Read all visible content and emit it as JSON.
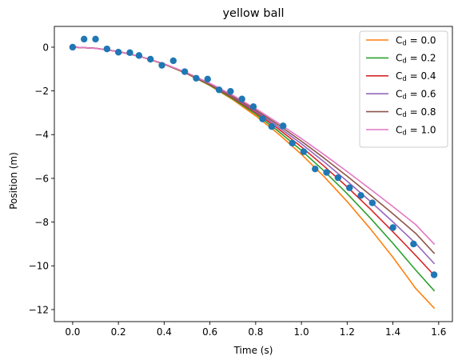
{
  "chart_data": {
    "type": "line",
    "title": "yellow ball",
    "xlabel": "Time (s)",
    "ylabel": "Position (m)",
    "xlim": [
      -0.08,
      1.66
    ],
    "ylim": [
      -12.55,
      0.95
    ],
    "xticks": [
      0.0,
      0.2,
      0.4,
      0.6,
      0.8,
      1.0,
      1.2,
      1.4,
      1.6
    ],
    "xtick_labels": [
      "0.0",
      "0.2",
      "0.4",
      "0.6",
      "0.8",
      "1.0",
      "1.2",
      "1.4",
      "1.6"
    ],
    "yticks": [
      0,
      -2,
      -4,
      -6,
      -8,
      -10,
      -12
    ],
    "ytick_labels": [
      "0",
      "−2",
      "−4",
      "−6",
      "−8",
      "−10",
      "−12"
    ],
    "grid": false,
    "legend_position": "top-right",
    "scatter": {
      "color": "#1f77b4",
      "x": [
        0.0,
        0.05,
        0.1,
        0.15,
        0.2,
        0.25,
        0.29,
        0.34,
        0.39,
        0.44,
        0.49,
        0.54,
        0.59,
        0.64,
        0.69,
        0.74,
        0.79,
        0.83,
        0.87,
        0.92,
        0.96,
        1.01,
        1.06,
        1.11,
        1.16,
        1.21,
        1.26,
        1.31,
        1.4,
        1.49,
        1.58
      ],
      "y": [
        0.0,
        0.37,
        0.37,
        -0.08,
        -0.23,
        -0.25,
        -0.38,
        -0.55,
        -0.83,
        -0.62,
        -1.12,
        -1.42,
        -1.46,
        -1.95,
        -2.02,
        -2.37,
        -2.72,
        -3.28,
        -3.63,
        -3.6,
        -4.39,
        -4.78,
        -5.57,
        -5.73,
        -5.97,
        -6.43,
        -6.78,
        -7.12,
        -8.25,
        -9.0,
        -10.41
      ]
    },
    "series": [
      {
        "name_base": "C",
        "name_sub": "d",
        "name_rest": " = 0.0",
        "color": "#ff7f0e",
        "x": [
          0.0,
          0.1,
          0.2,
          0.3,
          0.4,
          0.5,
          0.6,
          0.7,
          0.8,
          0.9,
          1.0,
          1.1,
          1.2,
          1.3,
          1.4,
          1.5,
          1.58
        ],
        "y": [
          0.0,
          -0.05,
          -0.2,
          -0.44,
          -0.78,
          -1.22,
          -1.76,
          -2.4,
          -3.14,
          -3.97,
          -4.9,
          -5.93,
          -7.06,
          -8.29,
          -9.61,
          -11.04,
          -11.93
        ]
      },
      {
        "name_base": "C",
        "name_sub": "d",
        "name_rest": " = 0.2",
        "color": "#2ca02c",
        "x": [
          0.0,
          0.1,
          0.2,
          0.3,
          0.4,
          0.5,
          0.6,
          0.7,
          0.8,
          0.9,
          1.0,
          1.1,
          1.2,
          1.3,
          1.4,
          1.5,
          1.58
        ],
        "y": [
          0.0,
          -0.05,
          -0.2,
          -0.44,
          -0.78,
          -1.21,
          -1.74,
          -2.36,
          -3.06,
          -3.85,
          -4.72,
          -5.67,
          -6.7,
          -7.8,
          -8.97,
          -10.2,
          -11.13
        ]
      },
      {
        "name_base": "C",
        "name_sub": "d",
        "name_rest": " = 0.4",
        "color": "#d62728",
        "x": [
          0.0,
          0.1,
          0.2,
          0.3,
          0.4,
          0.5,
          0.6,
          0.7,
          0.8,
          0.9,
          1.0,
          1.1,
          1.2,
          1.3,
          1.4,
          1.5,
          1.58
        ],
        "y": [
          0.0,
          -0.05,
          -0.2,
          -0.44,
          -0.77,
          -1.2,
          -1.71,
          -2.31,
          -2.99,
          -3.74,
          -4.56,
          -5.45,
          -6.39,
          -7.39,
          -8.44,
          -9.53,
          -10.43
        ]
      },
      {
        "name_base": "C",
        "name_sub": "d",
        "name_rest": " = 0.6",
        "color": "#9467bd",
        "x": [
          0.0,
          0.1,
          0.2,
          0.3,
          0.4,
          0.5,
          0.6,
          0.7,
          0.8,
          0.9,
          1.0,
          1.1,
          1.2,
          1.3,
          1.4,
          1.5,
          1.58
        ],
        "y": [
          0.0,
          -0.05,
          -0.2,
          -0.44,
          -0.77,
          -1.19,
          -1.69,
          -2.27,
          -2.93,
          -3.65,
          -4.42,
          -5.25,
          -6.13,
          -7.04,
          -7.99,
          -8.98,
          -9.89
        ]
      },
      {
        "name_base": "C",
        "name_sub": "d",
        "name_rest": " = 0.8",
        "color": "#8c564b",
        "x": [
          0.0,
          0.1,
          0.2,
          0.3,
          0.4,
          0.5,
          0.6,
          0.7,
          0.8,
          0.9,
          1.0,
          1.1,
          1.2,
          1.3,
          1.4,
          1.5,
          1.58
        ],
        "y": [
          0.0,
          -0.05,
          -0.2,
          -0.44,
          -0.77,
          -1.18,
          -1.67,
          -2.24,
          -2.87,
          -3.56,
          -4.3,
          -5.08,
          -5.9,
          -6.75,
          -7.62,
          -8.52,
          -9.42
        ]
      },
      {
        "name_base": "C",
        "name_sub": "d",
        "name_rest": " = 1.0",
        "color": "#e377c2",
        "x": [
          0.0,
          0.1,
          0.2,
          0.3,
          0.4,
          0.5,
          0.6,
          0.7,
          0.8,
          0.9,
          1.0,
          1.1,
          1.2,
          1.3,
          1.4,
          1.5,
          1.58
        ],
        "y": [
          0.0,
          -0.05,
          -0.2,
          -0.44,
          -0.76,
          -1.17,
          -1.65,
          -2.2,
          -2.81,
          -3.48,
          -4.18,
          -4.92,
          -5.69,
          -6.48,
          -7.29,
          -8.12,
          -9.0
        ]
      }
    ]
  }
}
